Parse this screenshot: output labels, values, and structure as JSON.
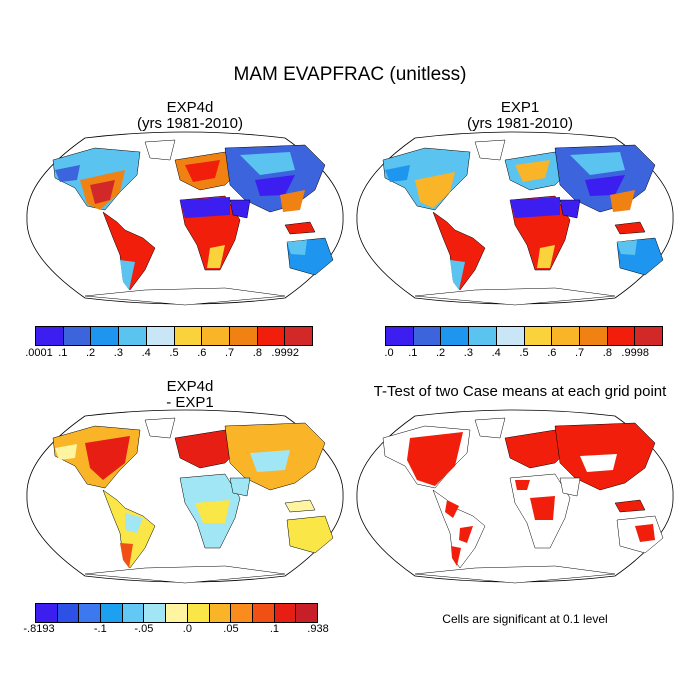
{
  "title": "MAM EVAPFRAC (unitless)",
  "panels": [
    {
      "title_line1": "EXP4d",
      "title_line2": "(yrs 1981-2010)"
    },
    {
      "title_line1": "EXP1",
      "title_line2": "(yrs 1981-2010)"
    },
    {
      "title_line1": "EXP4d",
      "title_line2": "- EXP1"
    },
    {
      "title_line1": "T-Test of two Case means at each grid point",
      "title_line2": ""
    }
  ],
  "colorbars": [
    {
      "colors": [
        "#3c1ef0",
        "#3c64dc",
        "#1e96f0",
        "#5ac3f0",
        "#c8e6f5",
        "#fad23c",
        "#fab428",
        "#f08214",
        "#f01e0a",
        "#d22828"
      ],
      "labels": [
        ".0001",
        ".1",
        ".2",
        ".3",
        ".4",
        ".5",
        ".6",
        ".7",
        ".8",
        ".9992"
      ]
    },
    {
      "colors": [
        "#3c1ef0",
        "#3c64dc",
        "#1e96f0",
        "#5ac3f0",
        "#c8e6f5",
        "#fad23c",
        "#fab428",
        "#f08214",
        "#f01e0a",
        "#d22828"
      ],
      "labels": [
        ".0",
        ".1",
        ".2",
        ".3",
        ".4",
        ".5",
        ".6",
        ".7",
        ".8",
        ".9998"
      ]
    },
    {
      "colors": [
        "#3c1ef0",
        "#2d50e6",
        "#3c78f0",
        "#1ea0f0",
        "#64c8f5",
        "#a0e6f5",
        "#fff5a0",
        "#fae646",
        "#fab428",
        "#fa8c1e",
        "#f05014",
        "#e61e14",
        "#c81e28"
      ],
      "labels": [
        {
          "t": "-.8193",
          "i": 0
        },
        {
          "t": "-.1",
          "i": 3
        },
        {
          "t": "-.05",
          "i": 5
        },
        {
          "t": ".0",
          "i": 7
        },
        {
          "t": ".05",
          "i": 9
        },
        {
          "t": ".1",
          "i": 11
        },
        {
          "t": ".938",
          "i": 13
        }
      ]
    }
  ],
  "note": "Cells are significant at 0.1 level"
}
